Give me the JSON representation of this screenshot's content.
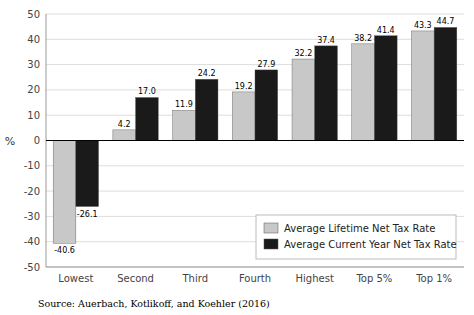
{
  "chart_data": {
    "type": "bar",
    "categories": [
      "Lowest",
      "Second",
      "Third",
      "Fourth",
      "Highest",
      "Top 5%",
      "Top 1%"
    ],
    "series": [
      {
        "name": "Average Lifetime Net Tax Rate",
        "color": "#c8c8c8",
        "values": [
          -40.6,
          4.2,
          11.9,
          19.2,
          32.2,
          38.2,
          43.3
        ]
      },
      {
        "name": "Average Current Year Net Tax Rate",
        "color": "#1a1a1a",
        "values": [
          -26.1,
          17.0,
          24.2,
          27.9,
          37.4,
          41.4,
          44.7
        ],
        "value_labels": [
          "-26.1",
          "17.0",
          "24.2",
          "27.9",
          "37.4",
          "41.4",
          "44.7"
        ]
      }
    ],
    "ylabel": "%",
    "ylim": [
      -50,
      50
    ],
    "yticks": [
      -50,
      -40,
      -30,
      -20,
      -10,
      0,
      10,
      20,
      30,
      40,
      50
    ],
    "grid": true,
    "legend": "lower right",
    "data_labels": true,
    "annotations": [
      "Source: Auerbach, Kotlikoff, and Koehler (2016)"
    ]
  }
}
